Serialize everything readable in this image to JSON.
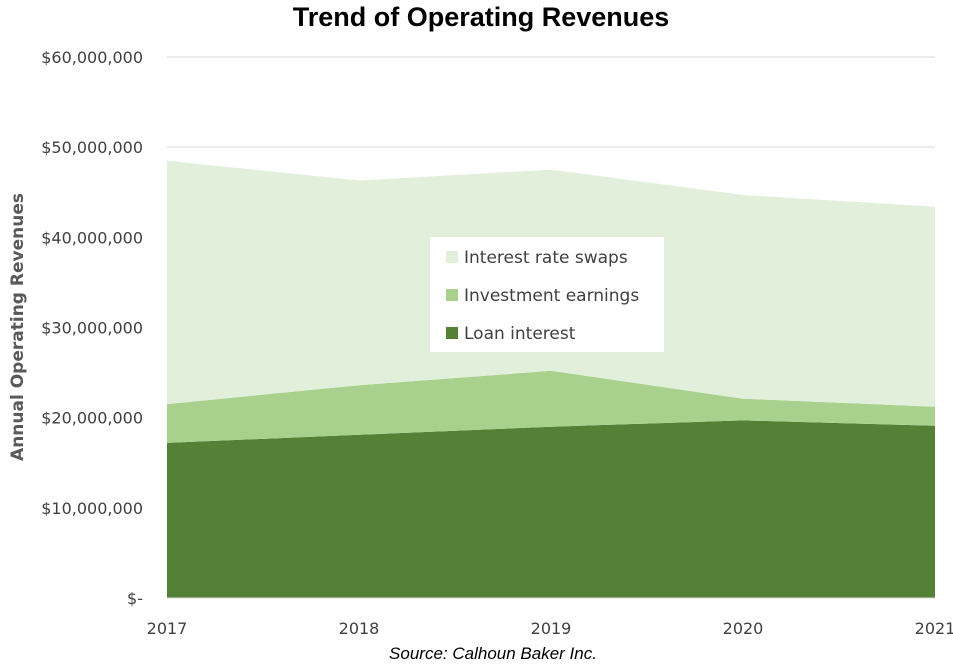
{
  "chart_data": {
    "type": "area",
    "stacked": true,
    "title": "Trend of Operating Revenues",
    "ylabel": "Annual Operating Revenues",
    "xlabel": "",
    "source_note": "Source: Calhoun Baker Inc.",
    "categories": [
      "2017",
      "2018",
      "2019",
      "2020",
      "2021"
    ],
    "ylim": [
      0,
      60000000
    ],
    "y_ticks": [
      {
        "value": 0,
        "label": "$-"
      },
      {
        "value": 10000000,
        "label": "$10,000,000"
      },
      {
        "value": 20000000,
        "label": "$20,000,000"
      },
      {
        "value": 30000000,
        "label": "$30,000,000"
      },
      {
        "value": 40000000,
        "label": "$40,000,000"
      },
      {
        "value": 50000000,
        "label": "$50,000,000"
      },
      {
        "value": 60000000,
        "label": "$60,000,000"
      }
    ],
    "grid": true,
    "legend_position": "center",
    "series": [
      {
        "name": "Loan interest",
        "color": "#538135",
        "values": [
          17200000,
          18100000,
          19000000,
          19700000,
          19100000
        ]
      },
      {
        "name": "Investment earnings",
        "color": "#a9d18e",
        "values": [
          4300000,
          5500000,
          6200000,
          2400000,
          2100000
        ]
      },
      {
        "name": "Interest rate swaps",
        "color": "#e2efda",
        "values": [
          27000000,
          22700000,
          22300000,
          22600000,
          22200000
        ]
      }
    ],
    "legend_order": [
      "Interest rate swaps",
      "Investment earnings",
      "Loan interest"
    ]
  }
}
